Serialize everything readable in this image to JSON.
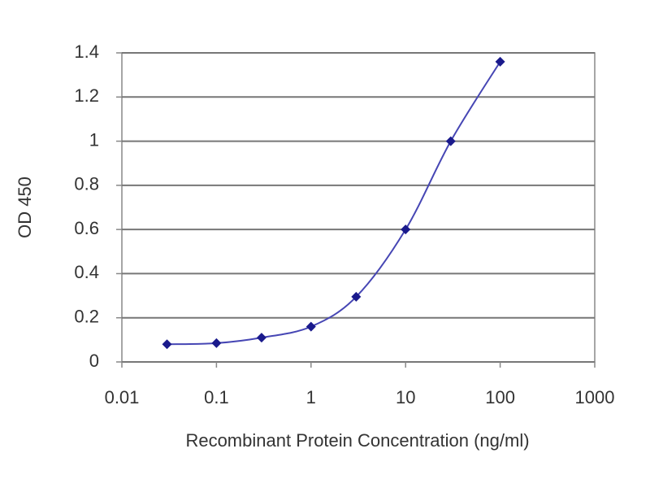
{
  "chart_data": {
    "type": "line",
    "x_label": "Recombinant Protein Concentration (ng/ml)",
    "y_label": "OD 450",
    "x": [
      0.03,
      0.1,
      0.3,
      1,
      3,
      10,
      30,
      100
    ],
    "values": [
      0.08,
      0.085,
      0.11,
      0.16,
      0.295,
      0.6,
      1.0,
      1.36
    ],
    "color": "#1a1a8c",
    "line_color": "#4646b4",
    "xscale": "log",
    "xlim": [
      0.01,
      1000
    ],
    "xticks": [
      0.01,
      0.1,
      1,
      10,
      100,
      1000
    ],
    "ylim": [
      0,
      1.4
    ],
    "yticks": [
      0,
      0.2,
      0.4,
      0.6,
      0.8,
      1,
      1.2,
      1.4
    ],
    "grid": true
  }
}
